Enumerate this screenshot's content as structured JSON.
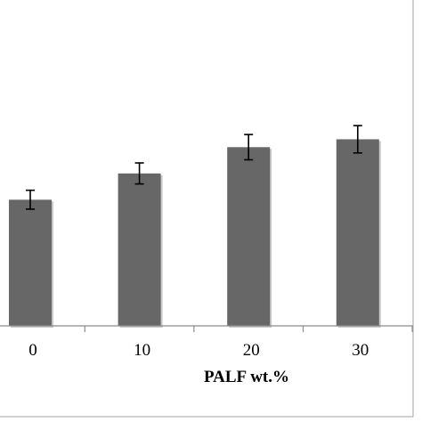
{
  "chart_data": {
    "type": "bar",
    "categories": [
      "0",
      "10",
      "20",
      "30"
    ],
    "values": [
      2.4,
      2.9,
      3.4,
      3.55
    ],
    "errors": [
      0.18,
      0.2,
      0.24,
      0.26
    ],
    "title": "",
    "xlabel": "PALF wt.%",
    "ylabel": "",
    "ylim": [
      0,
      6.2
    ],
    "grid": false,
    "legend": "none",
    "colors": {
      "bar": "#676767",
      "bar_shadow": "#c8c8c8",
      "axis": "#8c8c8c",
      "frame": "#a6a6a6",
      "error_bar": "#000000"
    }
  }
}
